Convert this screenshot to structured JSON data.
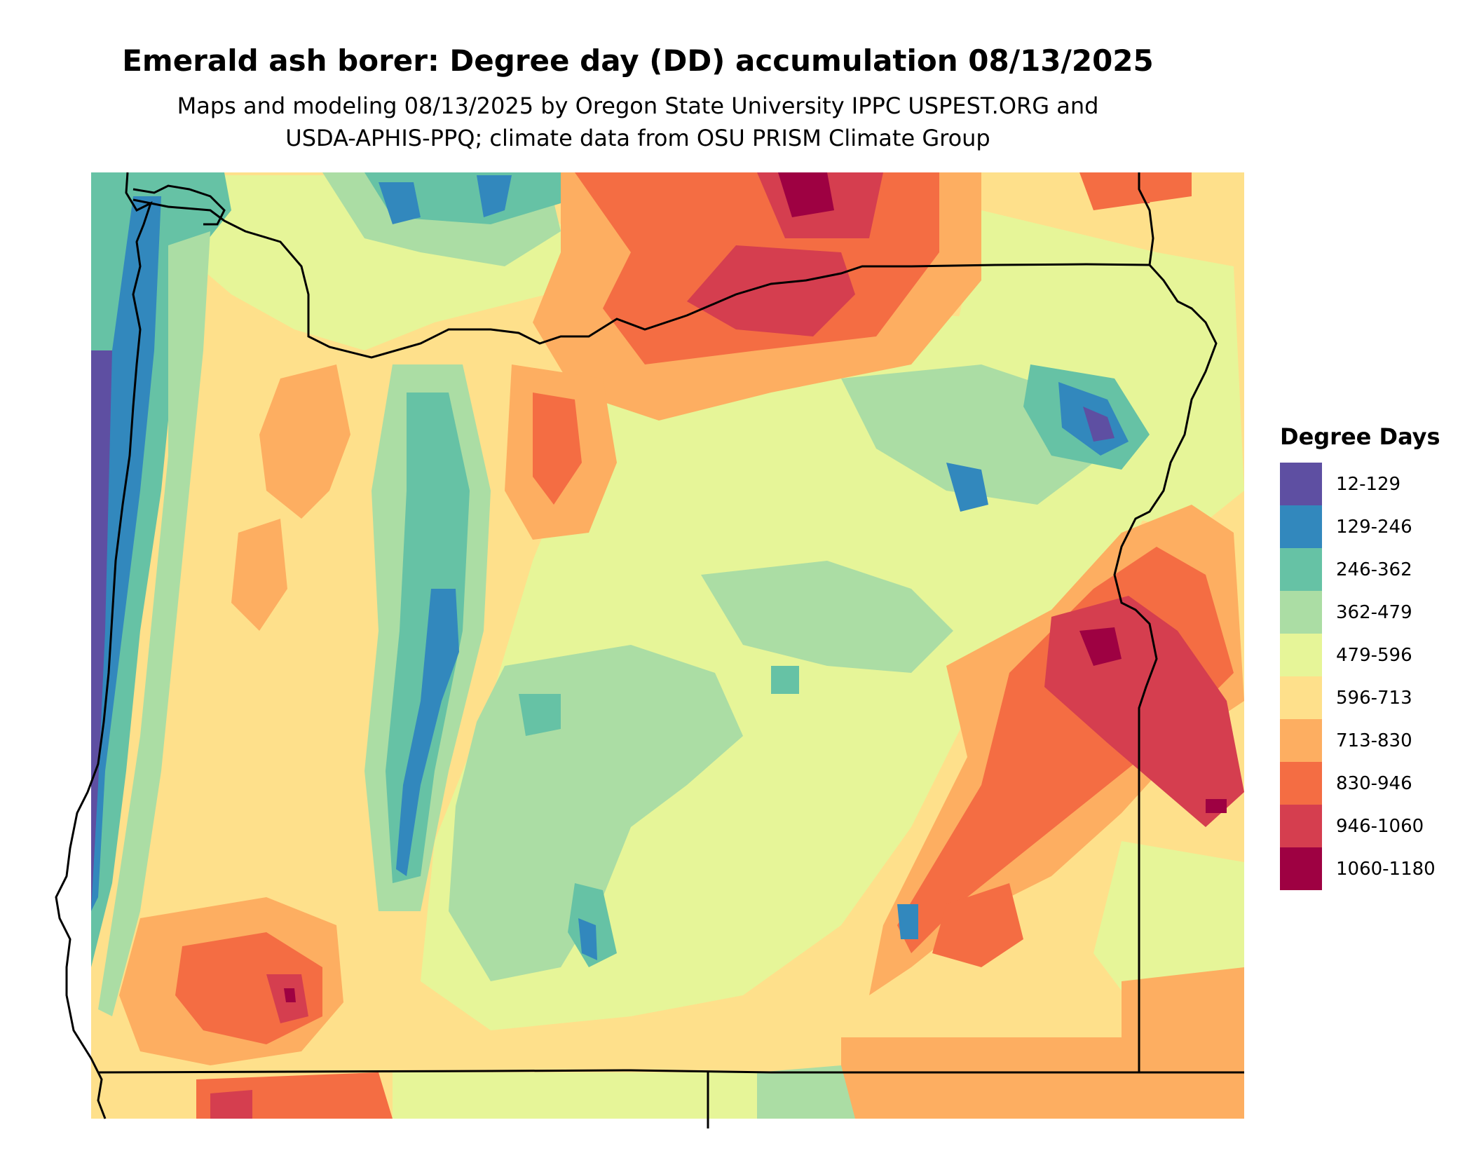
{
  "title": "Emerald ash borer: Degree day (DD) accumulation 08/13/2025",
  "subtitle_line1": "Maps and modeling 08/13/2025 by Oregon State University IPPC USPEST.ORG and",
  "subtitle_line2": "USDA-APHIS-PPQ; climate data from OSU PRISM Climate Group",
  "legend": {
    "title": "Degree Days",
    "items": [
      {
        "label": "12-129",
        "color": "#5E4FA2"
      },
      {
        "label": "129-246",
        "color": "#3288BD"
      },
      {
        "label": "246-362",
        "color": "#66C2A5"
      },
      {
        "label": "362-479",
        "color": "#ABDDA4"
      },
      {
        "label": "479-596",
        "color": "#E6F598"
      },
      {
        "label": "596-713",
        "color": "#FEE08B"
      },
      {
        "label": "713-830",
        "color": "#FDAE61"
      },
      {
        "label": "830-946",
        "color": "#F46D43"
      },
      {
        "label": "946-1060",
        "color": "#D53E4F"
      },
      {
        "label": "1060-1180",
        "color": "#9E0142"
      }
    ]
  }
}
